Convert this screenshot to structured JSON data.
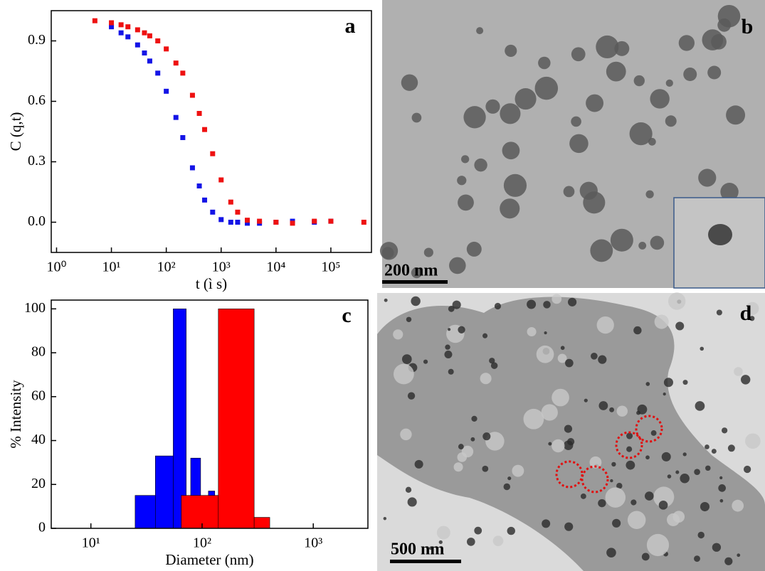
{
  "chart_data": [
    {
      "type": "scatter",
      "panel_label": "a",
      "x_label": "t (ì s)",
      "y_label": "C (q,t)",
      "xlog": true,
      "xlim": [
        0.8,
        550000
      ],
      "ylim": [
        -0.15,
        1.05
      ],
      "xticks": [
        {
          "value": 1,
          "label": "10⁰"
        },
        {
          "value": 10,
          "label": "10¹"
        },
        {
          "value": 100,
          "label": "10²"
        },
        {
          "value": 1000,
          "label": "10³"
        },
        {
          "value": 10000,
          "label": "10⁴"
        },
        {
          "value": 100000,
          "label": "10⁵"
        }
      ],
      "yticks": [
        {
          "value": 0,
          "label": "0.0"
        },
        0.3,
        0.6,
        0.9
      ],
      "series": [
        {
          "color": "#1414e6",
          "x": [
            10,
            15,
            20,
            30,
            40,
            50,
            70,
            100,
            150,
            200,
            300,
            400,
            500,
            700,
            1000,
            1500,
            2000,
            3000,
            5000,
            10000,
            20000,
            50000,
            100000
          ],
          "values": [
            0.97,
            0.94,
            0.92,
            0.88,
            0.84,
            0.8,
            0.74,
            0.65,
            0.52,
            0.42,
            0.27,
            0.18,
            0.11,
            0.05,
            0.013,
            0.0,
            0.0,
            -0.005,
            -0.005,
            0.0,
            0.005,
            0.0,
            0.005
          ]
        },
        {
          "color": "#ee1111",
          "x": [
            5,
            10,
            15,
            20,
            30,
            40,
            50,
            70,
            100,
            150,
            200,
            300,
            400,
            500,
            700,
            1000,
            1500,
            2000,
            3000,
            5000,
            10000,
            20000,
            50000,
            100000,
            400000
          ],
          "values": [
            1.0,
            0.99,
            0.98,
            0.97,
            0.955,
            0.94,
            0.925,
            0.9,
            0.86,
            0.79,
            0.74,
            0.63,
            0.54,
            0.46,
            0.34,
            0.21,
            0.1,
            0.05,
            0.01,
            0.005,
            0.0,
            -0.005,
            0.005,
            0.005,
            0.0
          ]
        }
      ]
    },
    {
      "type": "histogram",
      "panel_label": "c",
      "x_label": "Diameter (nm)",
      "y_label": "% Intensity",
      "xlog": true,
      "xlim": [
        4.4,
        3100
      ],
      "ylim": [
        0,
        104
      ],
      "xticks": [
        {
          "value": 10,
          "label": "10¹"
        },
        {
          "value": 100,
          "label": "10²"
        },
        {
          "value": 1000,
          "label": "10³"
        }
      ],
      "yticks": [
        0,
        20,
        40,
        60,
        80,
        100
      ],
      "series": [
        {
          "color": "#0000ff",
          "bins": [
            25,
            38,
            55,
            72,
            79,
            97,
            114,
            130
          ],
          "values": [
            15,
            33,
            100,
            0,
            32,
            0,
            17
          ]
        },
        {
          "color": "#ff0000",
          "bins": [
            65,
            140,
            294,
            406
          ],
          "values": [
            15,
            100,
            5
          ]
        }
      ]
    }
  ],
  "images": [
    {
      "panel_label": "b",
      "scale_bar": "200 nm"
    },
    {
      "panel_label": "d",
      "scale_bar": "500 nm"
    }
  ]
}
